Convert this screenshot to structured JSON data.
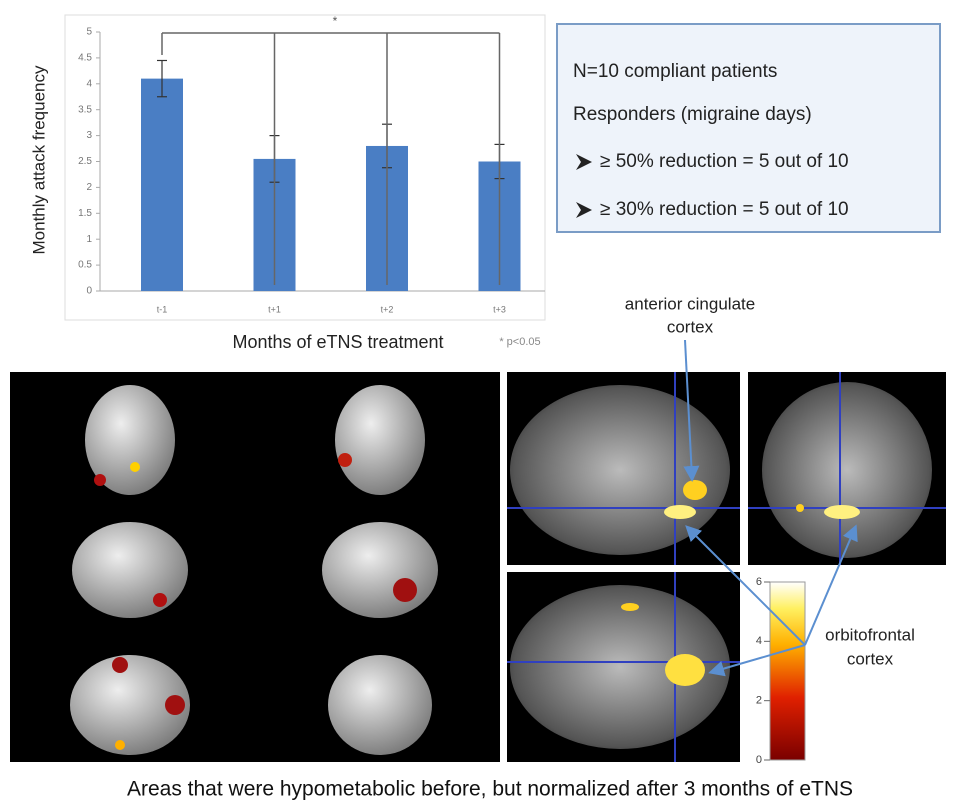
{
  "chart_data": {
    "type": "bar",
    "y_label": "Monthly attack frequency",
    "x_label": "Months of eTNS treatment",
    "significance": "*",
    "significance_note": "* p<0.05",
    "categories": [
      "t-1",
      "t+1",
      "t+2",
      "t+3"
    ],
    "values": [
      4.1,
      2.55,
      2.8,
      2.5
    ],
    "errors": [
      0.35,
      0.45,
      0.42,
      0.33
    ],
    "color": "#4a7ec4",
    "ylim": [
      0,
      5
    ],
    "yticks": [
      0,
      0.5,
      1,
      1.5,
      2,
      2.5,
      3,
      3.5,
      4,
      4.5,
      5
    ]
  },
  "summary": {
    "lines": [
      "N=10 compliant patients",
      "Responders (migraine days)",
      "≥ 50% reduction = 5 out of 10",
      "≥ 30% reduction = 5 out of 10"
    ]
  },
  "annotations": {
    "acc": [
      "anterior cingulate",
      "cortex"
    ],
    "ofc": [
      "orbitofrontal",
      "cortex"
    ]
  },
  "colorbar": {
    "ylim": [
      0,
      6
    ],
    "yticks": [
      0,
      2,
      4,
      6
    ]
  },
  "caption": "Areas that were hypometabolic before, but normalized after 3 months of eTNS"
}
